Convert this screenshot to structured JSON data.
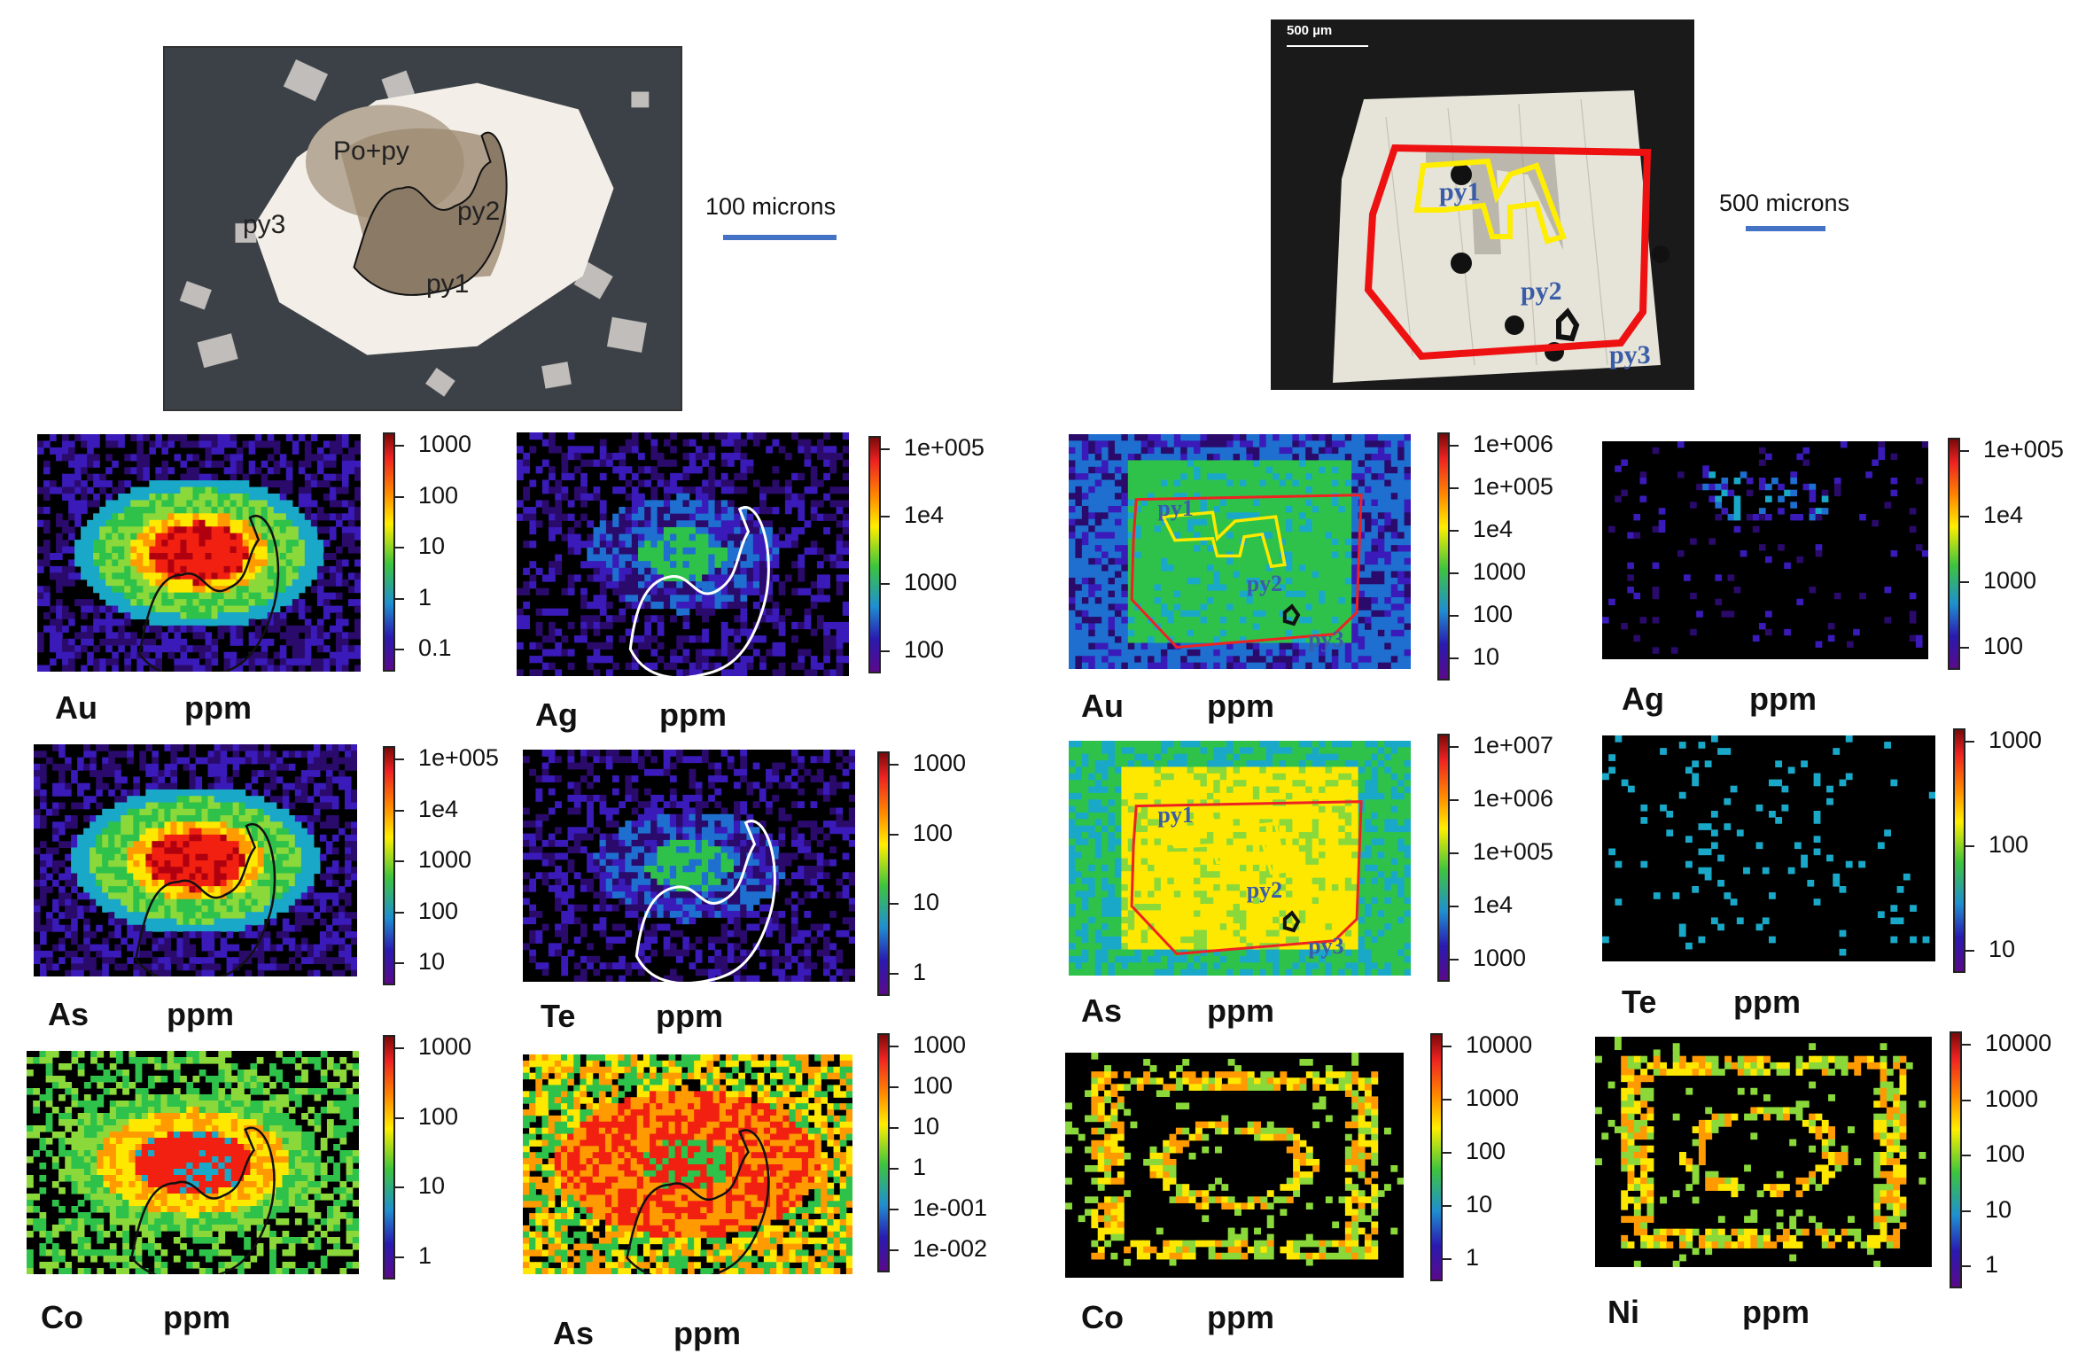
{
  "left_photo": {
    "labels": [
      "Po+py",
      "py2",
      "py3",
      "py1"
    ],
    "scale_text": "100 microns"
  },
  "right_photo": {
    "inset_scale": "500 µm",
    "labels": [
      "py1",
      "py2",
      "py3"
    ],
    "scale_text": "500 microns"
  },
  "unit": "ppm",
  "panels": [
    {
      "id": "l-au",
      "element": "Au",
      "ticks": [
        "1000",
        "100",
        "10",
        "1",
        "0.1"
      ]
    },
    {
      "id": "l-ag",
      "element": "Ag",
      "ticks": [
        "1e+005",
        "1e4",
        "1000",
        "100"
      ]
    },
    {
      "id": "l-as",
      "element": "As",
      "ticks": [
        "1e+005",
        "1e4",
        "1000",
        "100",
        "10"
      ]
    },
    {
      "id": "l-te",
      "element": "Te",
      "ticks": [
        "1000",
        "100",
        "10",
        "1"
      ]
    },
    {
      "id": "l-co",
      "element": "Co",
      "ticks": [
        "1000",
        "100",
        "10",
        "1"
      ]
    },
    {
      "id": "l-as2",
      "element": "As",
      "ticks": [
        "1000",
        "100",
        "10",
        "1",
        "1e-001",
        "1e-002"
      ]
    },
    {
      "id": "r-au",
      "element": "Au",
      "ticks": [
        "1e+006",
        "1e+005",
        "1e4",
        "1000",
        "100",
        "10"
      ],
      "overlay_labels": [
        "py1",
        "py2",
        "py3"
      ]
    },
    {
      "id": "r-ag",
      "element": "Ag",
      "ticks": [
        "1e+005",
        "1e4",
        "1000",
        "100"
      ]
    },
    {
      "id": "r-as",
      "element": "As",
      "ticks": [
        "1e+007",
        "1e+006",
        "1e+005",
        "1e4",
        "1000"
      ],
      "overlay_labels": [
        "py1",
        "py2",
        "py3"
      ]
    },
    {
      "id": "r-te",
      "element": "Te",
      "ticks": [
        "1000",
        "100",
        "10"
      ]
    },
    {
      "id": "r-co",
      "element": "Co",
      "ticks": [
        "10000",
        "1000",
        "100",
        "10",
        "1"
      ]
    },
    {
      "id": "r-ni",
      "element": "Ni",
      "ticks": [
        "10000",
        "1000",
        "100",
        "10",
        "1"
      ]
    }
  ]
}
